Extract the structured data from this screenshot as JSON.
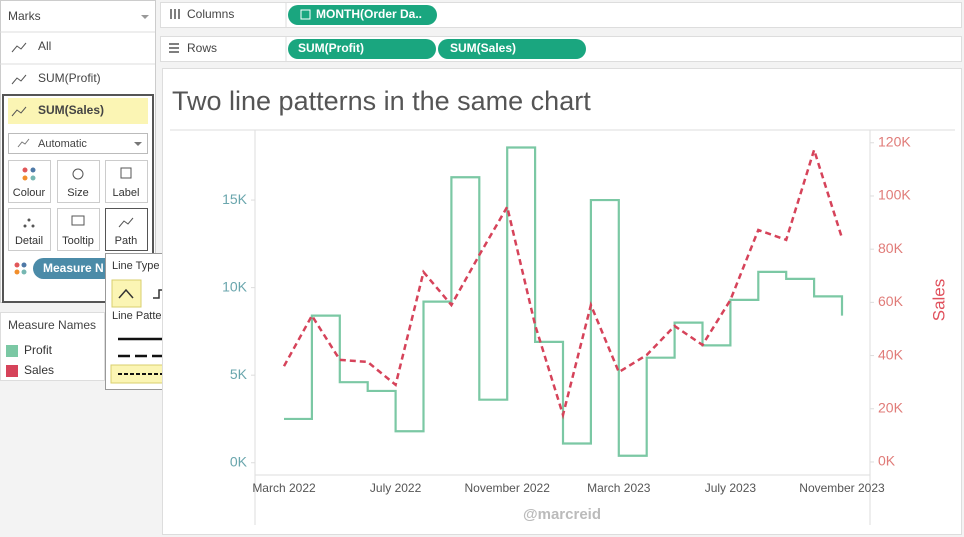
{
  "marks_card": {
    "title": "Marks",
    "items": [
      "All",
      "SUM(Profit)",
      "SUM(Sales)"
    ],
    "mark_type": "Automatic",
    "buttons": [
      "Colour",
      "Size",
      "Label",
      "Detail",
      "Tooltip",
      "Path"
    ],
    "pill": "Measure N"
  },
  "path_popup": {
    "line_type": "Line Type",
    "line_pattern": "Line Pattern"
  },
  "shelves": {
    "columns": {
      "label": "Columns",
      "pills": [
        "MONTH(Order Da.."
      ]
    },
    "rows": {
      "label": "Rows",
      "pills": [
        "SUM(Profit)",
        "SUM(Sales)"
      ]
    }
  },
  "chart_data": {
    "type": "line",
    "title": "Two line patterns in the same chart",
    "legend_title": "Measure Names",
    "y2label": "Sales",
    "watermark": "@marcreid",
    "categories": [
      "March 2022",
      null,
      null,
      null,
      "July 2022",
      null,
      null,
      null,
      "November 2022",
      null,
      null,
      null,
      "March 2023",
      null,
      null,
      null,
      "July 2023",
      null,
      null,
      null,
      "November 2023"
    ],
    "series": [
      {
        "name": "Profit",
        "color": "#7bc8a4",
        "line": "step",
        "dash": "solid",
        "values": [
          2500,
          8400,
          4600,
          4100,
          1800,
          9200,
          16300,
          3600,
          18000,
          6900,
          1100,
          15000,
          400,
          6000,
          8000,
          6700,
          9300,
          10900,
          10500,
          9500,
          8400
        ]
      },
      {
        "name": "Sales",
        "color": "#d6435a",
        "line": "linear",
        "dash": "dashed",
        "axis": "y2",
        "values": [
          36000,
          55000,
          38400,
          37600,
          29000,
          71400,
          59000,
          77800,
          95900,
          51500,
          17700,
          59000,
          33800,
          40200,
          51100,
          44000,
          60900,
          87200,
          83500,
          117300,
          84200
        ]
      }
    ],
    "ylim": [
      -700,
      19000
    ],
    "yticks": [
      {
        "value": 0,
        "label": "0K"
      },
      {
        "value": 5000,
        "label": "5K"
      },
      {
        "value": 10000,
        "label": "10K"
      },
      {
        "value": 15000,
        "label": "15K"
      }
    ],
    "y2lim": [
      -4900,
      124800
    ],
    "y2ticks": [
      {
        "value": 0,
        "label": "0K"
      },
      {
        "value": 20000,
        "label": "20K"
      },
      {
        "value": 40000,
        "label": "40K"
      },
      {
        "value": 60000,
        "label": "60K"
      },
      {
        "value": 80000,
        "label": "80K"
      },
      {
        "value": 100000,
        "label": "100K"
      },
      {
        "value": 120000,
        "label": "120K"
      }
    ]
  }
}
